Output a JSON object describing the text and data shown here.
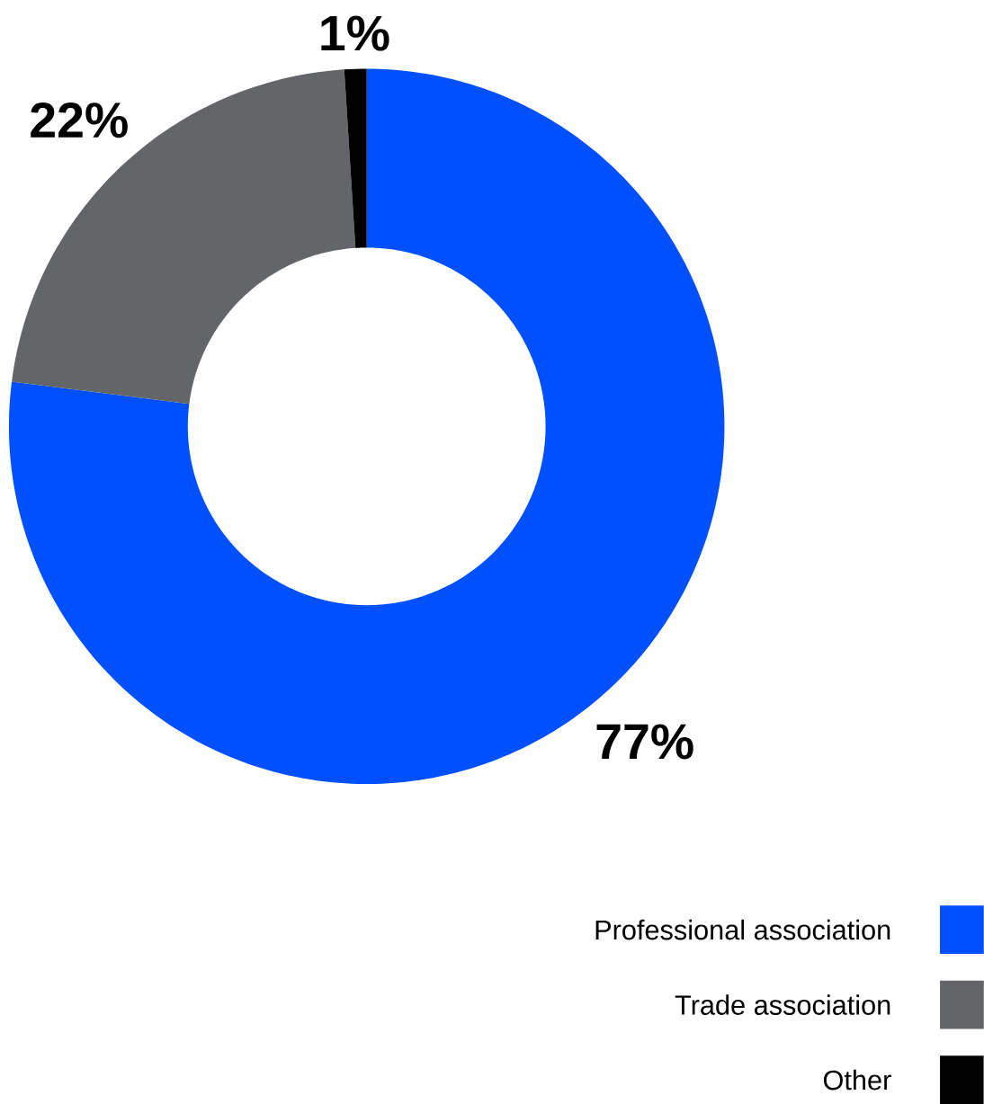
{
  "chart_data": {
    "type": "donut",
    "categories": [
      "Professional association",
      "Trade association",
      "Other"
    ],
    "values": [
      77,
      22,
      1
    ],
    "colors": [
      "#0050ff",
      "#636569",
      "#000000"
    ],
    "value_labels": [
      "77%",
      "22%",
      "1%"
    ],
    "legend": "bottom right"
  }
}
